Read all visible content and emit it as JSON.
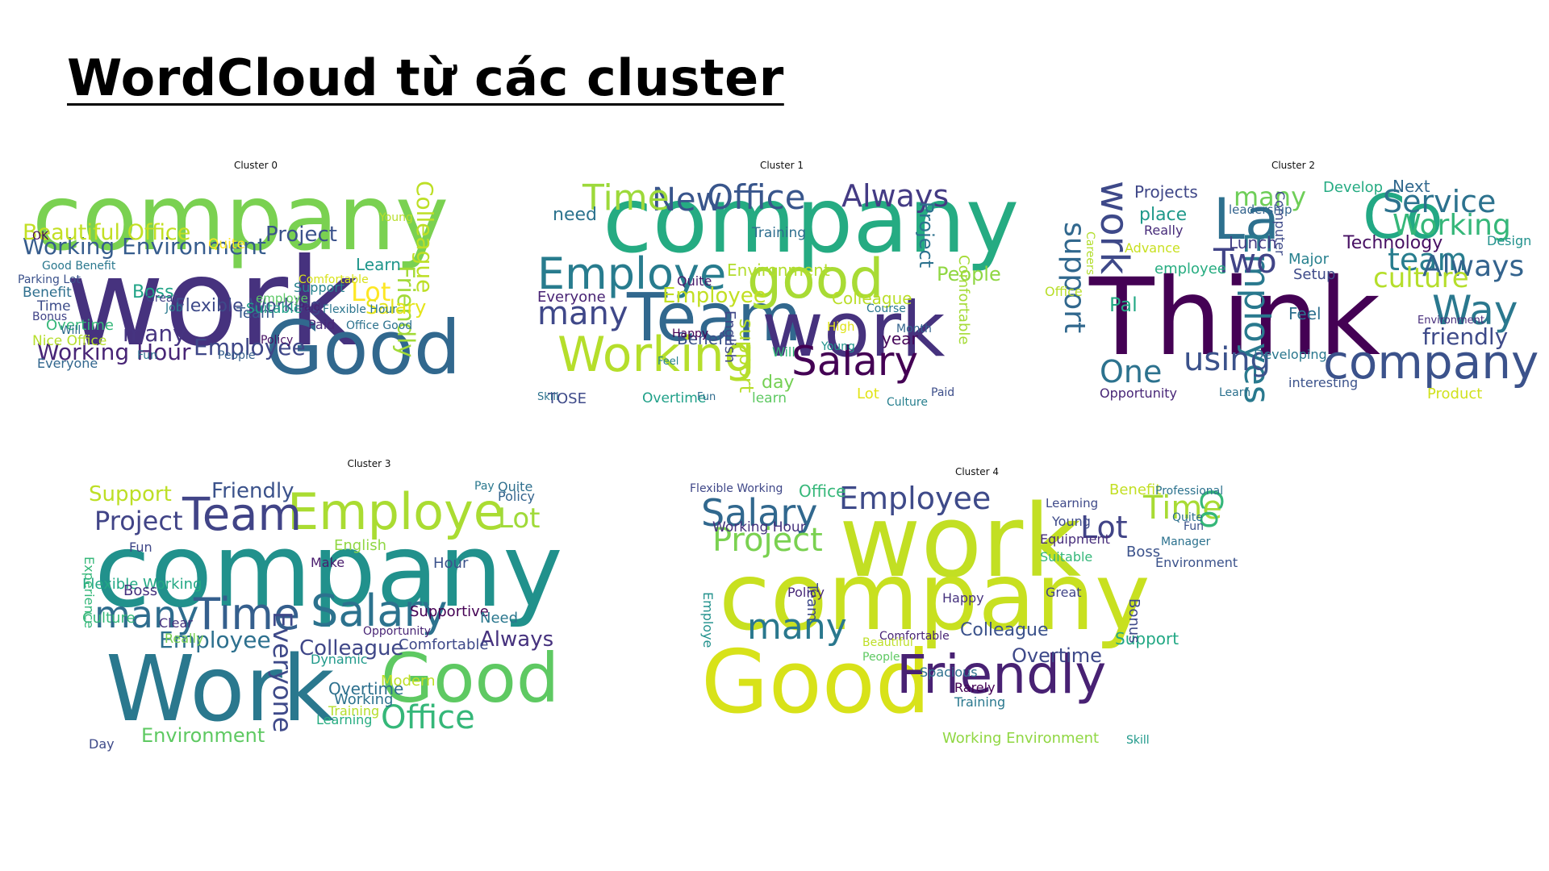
{
  "title": "WordCloud từ các cluster",
  "clusters": [
    {
      "label": "Cluster 0",
      "words": [
        {
          "text": "company",
          "color": "#7ad151"
        },
        {
          "text": "work",
          "color": "#46327e"
        },
        {
          "text": "Good",
          "color": "#31688e"
        },
        {
          "text": "Working Environment",
          "color": "#365c8d"
        },
        {
          "text": "Project",
          "color": "#3b528b"
        },
        {
          "text": "Beautiful Office",
          "color": "#c2df23"
        },
        {
          "text": "Colleague",
          "color": "#bddf26"
        },
        {
          "text": "Friendly",
          "color": "#a2da37"
        },
        {
          "text": "Lot",
          "color": "#fde725"
        },
        {
          "text": "Salary",
          "color": "#e5e419"
        },
        {
          "text": "Flexible Working",
          "color": "#3e4a89"
        },
        {
          "text": "Employee",
          "color": "#3f4788"
        },
        {
          "text": "Working Hour",
          "color": "#482576"
        },
        {
          "text": "many",
          "color": "#463480"
        },
        {
          "text": "Boss",
          "color": "#20a386"
        },
        {
          "text": "Benefit",
          "color": "#2e6f8e"
        },
        {
          "text": "Overtime",
          "color": "#35b779"
        },
        {
          "text": "Nice Office",
          "color": "#b5de2b"
        },
        {
          "text": "Everyone",
          "color": "#31668e"
        },
        {
          "text": "Good Benefit",
          "color": "#2a788e"
        },
        {
          "text": "Time",
          "color": "#3d4d8a"
        },
        {
          "text": "Team",
          "color": "#375a8c"
        },
        {
          "text": "Learn",
          "color": "#1f968b"
        },
        {
          "text": "Support",
          "color": "#26828e"
        },
        {
          "text": "Suitable",
          "color": "#1fa088"
        },
        {
          "text": "Comfortable",
          "color": "#d8e219"
        },
        {
          "text": "Paid",
          "color": "#482878"
        },
        {
          "text": "Office Good",
          "color": "#2c728e"
        },
        {
          "text": "Quite",
          "color": "#fde725"
        },
        {
          "text": "Young",
          "color": "#b8de29"
        },
        {
          "text": "Fun",
          "color": "#2d708e"
        },
        {
          "text": "People",
          "color": "#355f8d"
        },
        {
          "text": "Great",
          "color": "#424086"
        },
        {
          "text": "Job",
          "color": "#29798e"
        },
        {
          "text": "Policy",
          "color": "#471164"
        },
        {
          "text": "Flexible Hour",
          "color": "#2b758e"
        },
        {
          "text": "Parking Lot",
          "color": "#3b518b"
        },
        {
          "text": "OK",
          "color": "#46085c"
        },
        {
          "text": "Bonus",
          "color": "#404387"
        },
        {
          "text": "Will",
          "color": "#2f6c8e"
        },
        {
          "text": "employe",
          "color": "#5ac864"
        },
        {
          "text": "Paid",
          "color": "#481f70"
        }
      ]
    },
    {
      "label": "Cluster 1",
      "words": [
        {
          "text": "company",
          "color": "#25ab82"
        },
        {
          "text": "Team",
          "color": "#31688e"
        },
        {
          "text": "work",
          "color": "#46327e"
        },
        {
          "text": "Working",
          "color": "#b5de2b"
        },
        {
          "text": "Employe",
          "color": "#287c8e"
        },
        {
          "text": "good",
          "color": "#a8db34"
        },
        {
          "text": "Salary",
          "color": "#440154"
        },
        {
          "text": "New",
          "color": "#39558c"
        },
        {
          "text": "Office",
          "color": "#39568c"
        },
        {
          "text": "Always",
          "color": "#443b84"
        },
        {
          "text": "Time",
          "color": "#9dd93b"
        },
        {
          "text": "many",
          "color": "#3f4889"
        },
        {
          "text": "Employee",
          "color": "#c2df23"
        },
        {
          "text": "Everyone",
          "color": "#482374"
        },
        {
          "text": "People",
          "color": "#90d743"
        },
        {
          "text": "Project",
          "color": "#2c728e"
        },
        {
          "text": "Environment",
          "color": "#b2dd2d"
        },
        {
          "text": "support",
          "color": "#b8de29"
        },
        {
          "text": "Colleague",
          "color": "#bade28"
        },
        {
          "text": "Benefit",
          "color": "#3b528b"
        },
        {
          "text": "Quite",
          "color": "#481a6c"
        },
        {
          "text": "English",
          "color": "#3f4788"
        },
        {
          "text": "Comfortable",
          "color": "#a5db36"
        },
        {
          "text": "TOSE",
          "color": "#3e4a89"
        },
        {
          "text": "Overtime",
          "color": "#1fa088"
        },
        {
          "text": "learn",
          "color": "#5ec962"
        },
        {
          "text": "Lot",
          "color": "#e2e418"
        },
        {
          "text": "day",
          "color": "#75d054"
        },
        {
          "text": "Will",
          "color": "#35b779"
        },
        {
          "text": "year",
          "color": "#46075a"
        },
        {
          "text": "need",
          "color": "#2c738e"
        },
        {
          "text": "Training",
          "color": "#2e6e8e"
        },
        {
          "text": "Young",
          "color": "#20928c"
        },
        {
          "text": "High",
          "color": "#dfe318"
        },
        {
          "text": "Course",
          "color": "#2a778e"
        },
        {
          "text": "Month",
          "color": "#33638d"
        },
        {
          "text": "Culture",
          "color": "#277f8e"
        },
        {
          "text": "Fun",
          "color": "#2f6c8e"
        },
        {
          "text": "Skill",
          "color": "#2d718e"
        },
        {
          "text": "Happy",
          "color": "#440154"
        },
        {
          "text": "Feel",
          "color": "#26818e"
        },
        {
          "text": "Paid",
          "color": "#3d4e8a"
        }
      ]
    },
    {
      "label": "Cluster 2",
      "words": [
        {
          "text": "Think",
          "color": "#440154"
        },
        {
          "text": "company",
          "color": "#3b528b"
        },
        {
          "text": "La",
          "color": "#2d708e"
        },
        {
          "text": "Co",
          "color": "#22a884"
        },
        {
          "text": "Service",
          "color": "#2c728e"
        },
        {
          "text": "Working",
          "color": "#35b779"
        },
        {
          "text": "Way",
          "color": "#2a788e"
        },
        {
          "text": "work",
          "color": "#3e4989"
        },
        {
          "text": "Employes",
          "color": "#29798e"
        },
        {
          "text": "Two",
          "color": "#414487"
        },
        {
          "text": "team",
          "color": "#287d8e"
        },
        {
          "text": "Always",
          "color": "#33638d"
        },
        {
          "text": "culture",
          "color": "#b5de2b"
        },
        {
          "text": "many",
          "color": "#6ece58"
        },
        {
          "text": "using",
          "color": "#3b528b"
        },
        {
          "text": "One",
          "color": "#2c728e"
        },
        {
          "text": "support",
          "color": "#31688e"
        },
        {
          "text": "friendly",
          "color": "#3e4a89"
        },
        {
          "text": "Projects",
          "color": "#3f4788"
        },
        {
          "text": "Technology",
          "color": "#471063"
        },
        {
          "text": "Next",
          "color": "#31688e"
        },
        {
          "text": "Develop",
          "color": "#25ab82"
        },
        {
          "text": "Lunch",
          "color": "#433e85"
        },
        {
          "text": "Major",
          "color": "#27808e"
        },
        {
          "text": "Setup",
          "color": "#3e4a89"
        },
        {
          "text": "Feel",
          "color": "#2e6f8e"
        },
        {
          "text": "Pal",
          "color": "#22a884"
        },
        {
          "text": "place",
          "color": "#1f998a"
        },
        {
          "text": "Really",
          "color": "#472c7a"
        },
        {
          "text": "employee",
          "color": "#27ad81"
        },
        {
          "text": "Office",
          "color": "#b8de29"
        },
        {
          "text": "Product",
          "color": "#d0e11c"
        },
        {
          "text": "Opportunity",
          "color": "#482677"
        },
        {
          "text": "interesting",
          "color": "#3b528b"
        },
        {
          "text": "Developing",
          "color": "#2a778e"
        },
        {
          "text": "Design",
          "color": "#21918c"
        },
        {
          "text": "Advance",
          "color": "#c8e020"
        },
        {
          "text": "Careers",
          "color": "#b2dd2d"
        },
        {
          "text": "Learn",
          "color": "#2c718e"
        },
        {
          "text": "Computer",
          "color": "#3e4a89"
        },
        {
          "text": "leadership",
          "color": "#33638d"
        },
        {
          "text": "Environment",
          "color": "#472d7b"
        }
      ]
    },
    {
      "label": "Cluster 3",
      "words": [
        {
          "text": "company",
          "color": "#21918c"
        },
        {
          "text": "Work",
          "color": "#2a788e"
        },
        {
          "text": "Good",
          "color": "#5ec962"
        },
        {
          "text": "Employe",
          "color": "#aadc32"
        },
        {
          "text": "Team",
          "color": "#414487"
        },
        {
          "text": "Time",
          "color": "#355f8d"
        },
        {
          "text": "Salary",
          "color": "#2c728e"
        },
        {
          "text": "many",
          "color": "#2e6d8e"
        },
        {
          "text": "Office",
          "color": "#35b779"
        },
        {
          "text": "Everyone",
          "color": "#3e4989"
        },
        {
          "text": "Employee",
          "color": "#2d708e"
        },
        {
          "text": "Colleague",
          "color": "#3f4788"
        },
        {
          "text": "Always",
          "color": "#46327e"
        },
        {
          "text": "Project",
          "color": "#414487"
        },
        {
          "text": "Support",
          "color": "#bddf26"
        },
        {
          "text": "Friendly",
          "color": "#3b528b"
        },
        {
          "text": "Environment",
          "color": "#5ec962"
        },
        {
          "text": "Flexible Working",
          "color": "#22a884"
        },
        {
          "text": "Overtime",
          "color": "#2d708e"
        },
        {
          "text": "Culture",
          "color": "#35b779"
        },
        {
          "text": "Lot",
          "color": "#a0da39"
        },
        {
          "text": "Boss",
          "color": "#46337f"
        },
        {
          "text": "Comfortable",
          "color": "#3e4989"
        },
        {
          "text": "Opportunity",
          "color": "#482475"
        },
        {
          "text": "Learning",
          "color": "#27ad81"
        },
        {
          "text": "Modern",
          "color": "#bddf26"
        },
        {
          "text": "Working",
          "color": "#2c728e"
        },
        {
          "text": "Training",
          "color": "#b5de2b"
        },
        {
          "text": "Supportive",
          "color": "#440154"
        },
        {
          "text": "English",
          "color": "#90d743"
        },
        {
          "text": "Need",
          "color": "#2a778e"
        },
        {
          "text": "Hour",
          "color": "#3b528b"
        },
        {
          "text": "Dynamic",
          "color": "#1f998a"
        },
        {
          "text": "Clear",
          "color": "#46327e"
        },
        {
          "text": "Really",
          "color": "#7ad151"
        },
        {
          "text": "Experience",
          "color": "#35b779"
        },
        {
          "text": "Fun",
          "color": "#3f4788"
        },
        {
          "text": "Make",
          "color": "#481b6d"
        },
        {
          "text": "Policy",
          "color": "#33638d"
        },
        {
          "text": "Quite",
          "color": "#2e6f8e"
        },
        {
          "text": "Pay",
          "color": "#2a788e"
        },
        {
          "text": "Day",
          "color": "#3e4a89"
        }
      ]
    },
    {
      "label": "Cluster 4",
      "words": [
        {
          "text": "work",
          "color": "#c2df23"
        },
        {
          "text": "company",
          "color": "#c8e020"
        },
        {
          "text": "Good",
          "color": "#d8e219"
        },
        {
          "text": "Friendly",
          "color": "#482173"
        },
        {
          "text": "Salary",
          "color": "#31688e"
        },
        {
          "text": "Employee",
          "color": "#3e4a89"
        },
        {
          "text": "Time",
          "color": "#a8db34"
        },
        {
          "text": "Lot",
          "color": "#414487"
        },
        {
          "text": "Project",
          "color": "#7ad151"
        },
        {
          "text": "many",
          "color": "#2a788e"
        },
        {
          "text": "Co",
          "color": "#35b779"
        },
        {
          "text": "Colleague",
          "color": "#3b528b"
        },
        {
          "text": "Overtime",
          "color": "#3e4989"
        },
        {
          "text": "Office",
          "color": "#35b779"
        },
        {
          "text": "Working Hour",
          "color": "#46327e"
        },
        {
          "text": "Flexible Working",
          "color": "#3f4788"
        },
        {
          "text": "Benefit",
          "color": "#c2df23"
        },
        {
          "text": "Professional",
          "color": "#2c728e"
        },
        {
          "text": "Boss",
          "color": "#3b528b"
        },
        {
          "text": "Team",
          "color": "#3e4a89"
        },
        {
          "text": "Employe",
          "color": "#21918c"
        },
        {
          "text": "Support",
          "color": "#22a884"
        },
        {
          "text": "Environment",
          "color": "#3b528b"
        },
        {
          "text": "Working Environment",
          "color": "#90d743"
        },
        {
          "text": "Bonus",
          "color": "#3e4989"
        },
        {
          "text": "Comfortable",
          "color": "#482475"
        },
        {
          "text": "Spacious",
          "color": "#2d708e"
        },
        {
          "text": "Training",
          "color": "#2a788e"
        },
        {
          "text": "Rarely",
          "color": "#440154"
        },
        {
          "text": "Equipment",
          "color": "#472d7b"
        },
        {
          "text": "Suitable",
          "color": "#35b779"
        },
        {
          "text": "Young",
          "color": "#3e4a89"
        },
        {
          "text": "Policy",
          "color": "#482878"
        },
        {
          "text": "Learning",
          "color": "#3e4989"
        },
        {
          "text": "Happy",
          "color": "#46327e"
        },
        {
          "text": "Manager",
          "color": "#2c728e"
        },
        {
          "text": "Skill",
          "color": "#1f998a"
        },
        {
          "text": "Great",
          "color": "#414487"
        },
        {
          "text": "Quite",
          "color": "#2e6f8e"
        },
        {
          "text": "Beautiful",
          "color": "#bddf26"
        },
        {
          "text": "People",
          "color": "#5ec962"
        },
        {
          "text": "Fun",
          "color": "#3b528b"
        }
      ]
    }
  ]
}
